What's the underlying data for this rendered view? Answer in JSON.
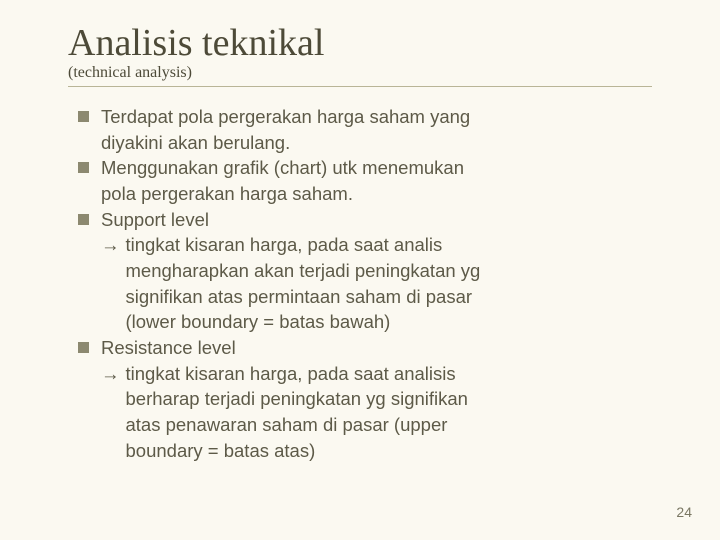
{
  "title": "Analisis teknikal",
  "subtitle": "(technical analysis)",
  "bullets": {
    "b1_line1": "Terdapat pola pergerakan harga saham yang",
    "b1_line2": "diyakini akan berulang.",
    "b2_line1": "Menggunakan grafik (chart) utk menemukan",
    "b2_line2": "pola pergerakan harga saham.",
    "b3_line1": "Support level",
    "b3_sub1": "tingkat kisaran harga, pada saat analis",
    "b3_sub2": "mengharapkan akan terjadi peningkatan yg",
    "b3_sub3": "signifikan atas permintaan saham di pasar",
    "b3_sub4": "(lower boundary = batas bawah)",
    "b4_line1": "Resistance level",
    "b4_sub1": "tingkat kisaran harga, pada saat analisis",
    "b4_sub2": "berharap terjadi peningkatan yg signifikan",
    "b4_sub3": "atas penawaran saham di pasar (upper",
    "b4_sub4": "boundary = batas atas)"
  },
  "arrow_glyph": "→",
  "page_number": "24",
  "colors": {
    "background": "#fbf9f1",
    "text": "#5d5a48",
    "bullet_square": "#8c8970",
    "rule": "#b9b597"
  }
}
